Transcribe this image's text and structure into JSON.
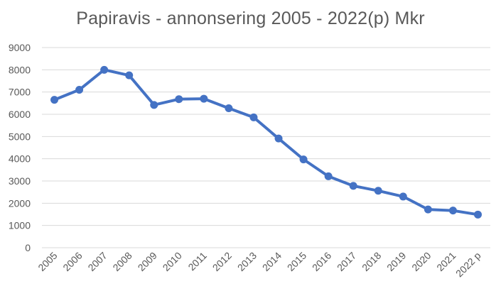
{
  "chart_data": {
    "type": "line",
    "title": "Papiravis - annonsering 2005 - 2022(p) Mkr",
    "xlabel": "",
    "ylabel": "",
    "categories": [
      "2005",
      "2006",
      "2007",
      "2008",
      "2009",
      "2010",
      "2011",
      "2012",
      "2013",
      "2014",
      "2015",
      "2016",
      "2017",
      "2018",
      "2019",
      "2020",
      "2021",
      "2022 p"
    ],
    "series": [
      {
        "values": [
          6650,
          7100,
          8000,
          7750,
          6420,
          6680,
          6700,
          6270,
          5860,
          4910,
          3970,
          3210,
          2780,
          2560,
          2300,
          1720,
          1670,
          1490
        ],
        "color": "#4472C4"
      }
    ],
    "ylim": [
      0,
      9000
    ],
    "yticks": [
      "0",
      "1000",
      "2000",
      "3000",
      "4000",
      "5000",
      "6000",
      "7000",
      "8000",
      "9000"
    ],
    "grid": true,
    "gridColor": "#d9d9d9",
    "legend": "none"
  }
}
